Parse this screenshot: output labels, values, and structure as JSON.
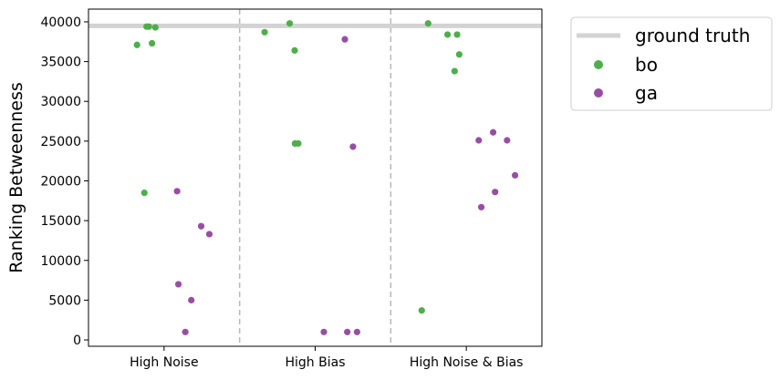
{
  "chart_data": {
    "type": "scatter",
    "ylabel": "Ranking Betweenness",
    "xlabel": "",
    "categories": [
      "High Noise",
      "High Bias",
      "High Noise & Bias"
    ],
    "ylim": [
      -800,
      41600
    ],
    "yticks": [
      0,
      5000,
      10000,
      15000,
      20000,
      25000,
      30000,
      35000,
      40000
    ],
    "ground_truth": {
      "name": "ground truth",
      "value": 39500,
      "color": "#d3d3d3"
    },
    "legend_position": "outside-top-right",
    "series": [
      {
        "name": "bo",
        "color": "#4daf4a",
        "points": [
          {
            "x": 0,
            "y": 37300
          },
          {
            "x": 0,
            "y": 39400
          },
          {
            "x": 0,
            "y": 39300
          },
          {
            "x": 0,
            "y": 39400
          },
          {
            "x": 0,
            "y": 37100
          },
          {
            "x": 0,
            "y": 18500
          },
          {
            "x": 1,
            "y": 39800
          },
          {
            "x": 1,
            "y": 38700
          },
          {
            "x": 1,
            "y": 36400
          },
          {
            "x": 1,
            "y": 24700
          },
          {
            "x": 1,
            "y": 24700
          },
          {
            "x": 2,
            "y": 39800
          },
          {
            "x": 2,
            "y": 38400
          },
          {
            "x": 2,
            "y": 38400
          },
          {
            "x": 2,
            "y": 35900
          },
          {
            "x": 2,
            "y": 33800
          },
          {
            "x": 2,
            "y": 3700
          }
        ]
      },
      {
        "name": "ga",
        "color": "#984ea3",
        "points": [
          {
            "x": 0,
            "y": 18700
          },
          {
            "x": 0,
            "y": 14300
          },
          {
            "x": 0,
            "y": 13300
          },
          {
            "x": 0,
            "y": 7000
          },
          {
            "x": 0,
            "y": 5000
          },
          {
            "x": 0,
            "y": 1000
          },
          {
            "x": 1,
            "y": 37800
          },
          {
            "x": 1,
            "y": 24300
          },
          {
            "x": 1,
            "y": 1000
          },
          {
            "x": 1,
            "y": 1000
          },
          {
            "x": 1,
            "y": 1000
          },
          {
            "x": 2,
            "y": 26100
          },
          {
            "x": 2,
            "y": 25100
          },
          {
            "x": 2,
            "y": 25100
          },
          {
            "x": 2,
            "y": 20700
          },
          {
            "x": 2,
            "y": 18600
          },
          {
            "x": 2,
            "y": 16700
          }
        ]
      }
    ]
  }
}
